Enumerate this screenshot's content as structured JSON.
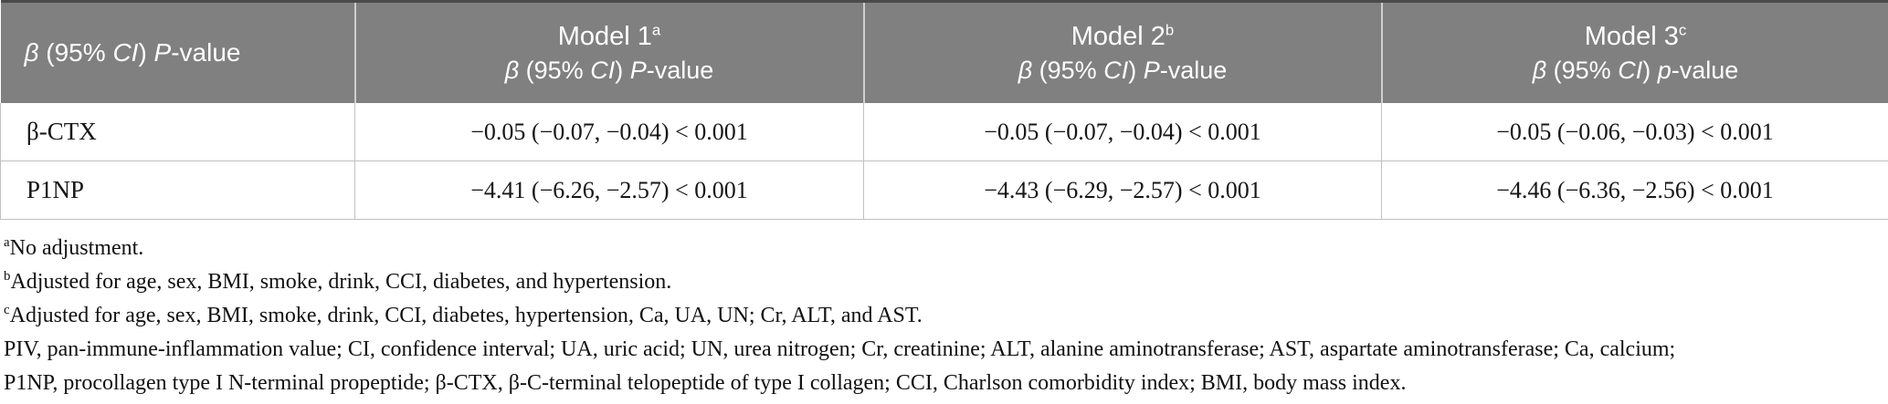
{
  "table": {
    "header": {
      "col1_parts": [
        {
          "t": "β",
          "i": true
        },
        {
          "t": " (95% ",
          "i": false
        },
        {
          "t": "CI",
          "i": true
        },
        {
          "t": ") ",
          "i": false
        },
        {
          "t": "P",
          "i": true
        },
        {
          "t": "-value",
          "i": false
        }
      ],
      "models": [
        {
          "name": "Model 1",
          "sup": "a",
          "line2_parts": [
            {
              "t": "β",
              "i": true
            },
            {
              "t": " (95% ",
              "i": false
            },
            {
              "t": "CI",
              "i": true
            },
            {
              "t": ") ",
              "i": false
            },
            {
              "t": "P",
              "i": true
            },
            {
              "t": "-value",
              "i": false
            }
          ]
        },
        {
          "name": "Model 2",
          "sup": "b",
          "line2_parts": [
            {
              "t": "β",
              "i": true
            },
            {
              "t": " (95% ",
              "i": false
            },
            {
              "t": "CI",
              "i": true
            },
            {
              "t": ") ",
              "i": false
            },
            {
              "t": "P",
              "i": true
            },
            {
              "t": "-value",
              "i": false
            }
          ]
        },
        {
          "name": "Model 3",
          "sup": "c",
          "line2_parts": [
            {
              "t": "β",
              "i": true
            },
            {
              "t": " (95% ",
              "i": false
            },
            {
              "t": "CI",
              "i": true
            },
            {
              "t": ") ",
              "i": false
            },
            {
              "t": "p",
              "i": true
            },
            {
              "t": "-value",
              "i": false
            }
          ]
        }
      ]
    },
    "rows": [
      {
        "label": "β-CTX",
        "values": [
          "−0.05 (−0.07, −0.04) < 0.001",
          "−0.05 (−0.07, −0.04) < 0.001",
          "−0.05 (−0.06, −0.03) < 0.001"
        ]
      },
      {
        "label": "P1NP",
        "values": [
          "−4.41 (−6.26, −2.57) < 0.001",
          "−4.43 (−6.29, −2.57) < 0.001",
          "−4.46 (−6.36, −2.56) < 0.001"
        ]
      }
    ]
  },
  "footnotes": [
    {
      "sup": "a",
      "text": "No adjustment."
    },
    {
      "sup": "b",
      "text": "Adjusted for age, sex, BMI, smoke, drink, CCI, diabetes, and hypertension."
    },
    {
      "sup": "c",
      "text": "Adjusted for age, sex, BMI, smoke, drink, CCI, diabetes, hypertension, Ca, UA, UN; Cr, ALT, and AST."
    },
    {
      "sup": "",
      "text": "PIV, pan-immune-inflammation value; CI, confidence interval; UA, uric acid; UN, urea nitrogen; Cr, creatinine; ALT, alanine aminotransferase; AST, aspartate aminotransferase; Ca, calcium;"
    },
    {
      "sup": "",
      "text": "P1NP, procollagen type I N-terminal propeptide; β-CTX, β-C-terminal telopeptide of type I collagen; CCI, Charlson comorbidity index; BMI, body mass index."
    }
  ],
  "colors": {
    "header_bg": "#808080",
    "header_text": "#ffffff",
    "top_border": "#4a4a4a",
    "cell_border": "#c0c0c0",
    "body_text": "#161616"
  }
}
